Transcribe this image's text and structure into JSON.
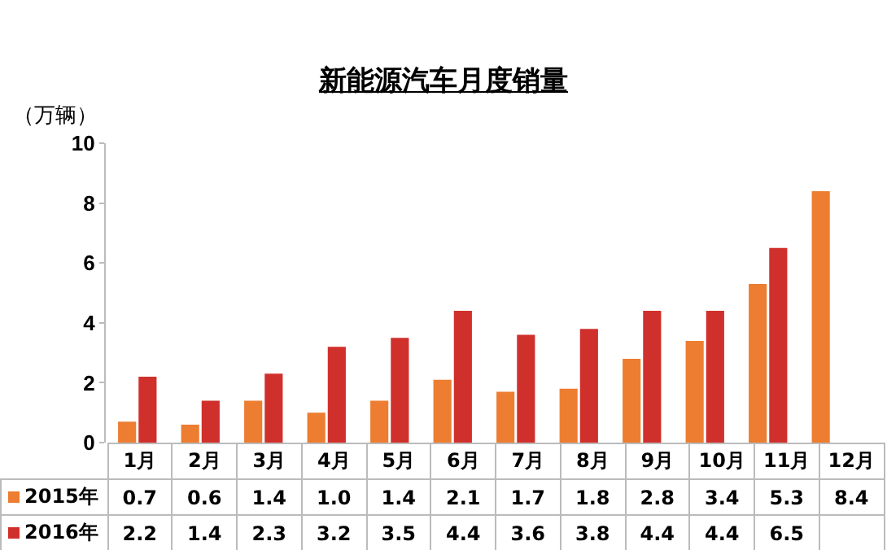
{
  "chart_data": {
    "type": "bar",
    "title": "新能源汽车月度销量",
    "ylabel": "（万辆）",
    "categories": [
      "1月",
      "2月",
      "3月",
      "4月",
      "5月",
      "6月",
      "7月",
      "8月",
      "9月",
      "10月",
      "11月",
      "12月"
    ],
    "series": [
      {
        "name": "2015年",
        "color": "#ed7d31",
        "values": [
          0.7,
          0.6,
          1.4,
          1.0,
          1.4,
          2.1,
          1.7,
          1.8,
          2.8,
          3.4,
          5.3,
          8.4
        ],
        "value_labels": [
          "0.7",
          "0.6",
          "1.4",
          "1.0",
          "1.4",
          "2.1",
          "1.7",
          "1.8",
          "2.8",
          "3.4",
          "5.3",
          "8.4"
        ]
      },
      {
        "name": "2016年",
        "color": "#d0302c",
        "values": [
          2.2,
          1.4,
          2.3,
          3.2,
          3.5,
          4.4,
          3.6,
          3.8,
          4.4,
          4.4,
          6.5,
          null
        ],
        "value_labels": [
          "2.2",
          "1.4",
          "2.3",
          "3.2",
          "3.5",
          "4.4",
          "3.6",
          "3.8",
          "4.4",
          "4.4",
          "6.5",
          null
        ]
      }
    ],
    "ylim": [
      0,
      10
    ],
    "yticks": [
      0,
      2,
      4,
      6,
      8,
      10
    ],
    "grid": false,
    "legend": "bottom"
  }
}
